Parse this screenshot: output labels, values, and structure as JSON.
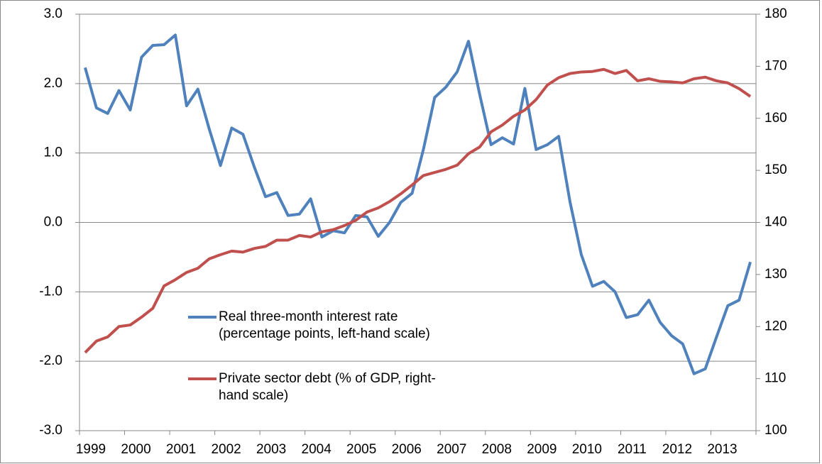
{
  "chart_data": {
    "type": "line",
    "categories": [
      "1999",
      null,
      null,
      null,
      "2000",
      null,
      null,
      null,
      "2001",
      null,
      null,
      null,
      "2002",
      null,
      null,
      null,
      "2003",
      null,
      null,
      null,
      "2004",
      null,
      null,
      null,
      "2005",
      null,
      null,
      null,
      "2006",
      null,
      null,
      null,
      "2007",
      null,
      null,
      null,
      "2008",
      null,
      null,
      null,
      "2009",
      null,
      null,
      null,
      "2010",
      null,
      null,
      null,
      "2011",
      null,
      null,
      null,
      "2012",
      null,
      null,
      null,
      "2013",
      null,
      null,
      null
    ],
    "series": [
      {
        "name": "Real three-month interest rate\n(percentage points, left-hand scale)",
        "color": "#4f81bd",
        "values": [
          2.23,
          1.65,
          1.57,
          1.9,
          1.62,
          2.38,
          2.55,
          2.56,
          2.7,
          1.68,
          1.92,
          1.35,
          0.82,
          1.36,
          1.27,
          0.8,
          0.37,
          0.43,
          0.1,
          0.12,
          0.34,
          -0.21,
          -0.12,
          -0.15,
          0.1,
          0.08,
          -0.2,
          0.0,
          0.29,
          0.42,
          1.05,
          1.8,
          1.95,
          2.17,
          2.61,
          1.84,
          1.12,
          1.22,
          1.13,
          1.93,
          1.05,
          1.12,
          1.24,
          0.3,
          -0.46,
          -0.92,
          -0.85,
          -1.0,
          -1.37,
          -1.33,
          -1.12,
          -1.44,
          -1.63,
          -1.75,
          -2.18,
          -2.11,
          -1.65,
          -1.2,
          -1.12,
          -0.57
        ]
      },
      {
        "name": "Private sector debt (% of GDP, right-\nhand scale)",
        "color": "#c0504d",
        "axis": "y2",
        "values": [
          115.0,
          117.2,
          118.0,
          120.0,
          120.3,
          121.8,
          123.5,
          127.8,
          129.0,
          130.4,
          131.2,
          133.0,
          133.8,
          134.5,
          134.3,
          135.0,
          135.4,
          136.6,
          136.6,
          137.5,
          137.2,
          138.2,
          138.6,
          139.4,
          140.4,
          142.0,
          142.8,
          144.0,
          145.5,
          147.2,
          149.0,
          149.6,
          150.2,
          151.0,
          153.2,
          154.5,
          157.4,
          158.7,
          160.4,
          161.6,
          163.6,
          166.4,
          167.8,
          168.6,
          168.9,
          169.0,
          169.4,
          168.6,
          169.2,
          167.2,
          167.6,
          167.1,
          167.0,
          166.8,
          167.6,
          167.9,
          167.2,
          166.8,
          165.7,
          164.2
        ]
      }
    ],
    "ylim": [
      -3,
      3
    ],
    "yticks": [
      {
        "value": -3,
        "label": "-3.0"
      },
      {
        "value": -2,
        "label": "-2.0"
      },
      {
        "value": -1,
        "label": "-1.0"
      },
      {
        "value": 0,
        "label": "0.0"
      },
      {
        "value": 1,
        "label": "1.0"
      },
      {
        "value": 2,
        "label": "2.0"
      },
      {
        "value": 3,
        "label": "3.0"
      }
    ],
    "y2lim": [
      100,
      180
    ],
    "y2ticks": [
      100,
      110,
      120,
      130,
      140,
      150,
      160,
      170,
      180
    ],
    "grid": true
  }
}
